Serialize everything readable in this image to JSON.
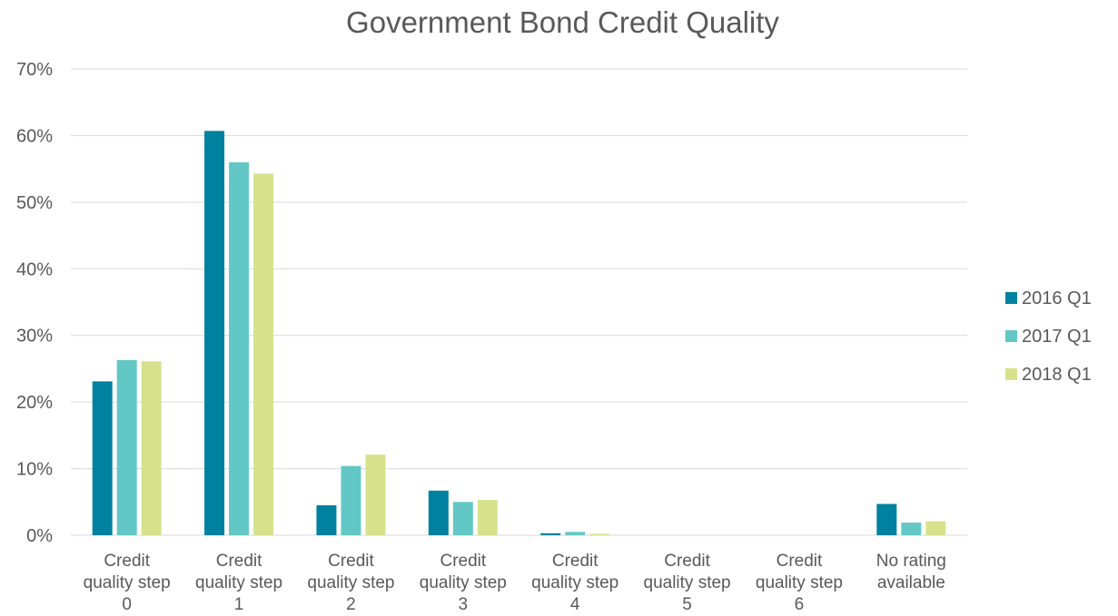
{
  "chart_data": {
    "type": "bar",
    "title": "Government Bond Credit Quality",
    "xlabel": "",
    "ylabel": "",
    "categories": [
      [
        "Credit",
        "quality step",
        "0"
      ],
      [
        "Credit",
        "quality step",
        "1"
      ],
      [
        "Credit",
        "quality step",
        "2"
      ],
      [
        "Credit",
        "quality step",
        "3"
      ],
      [
        "Credit",
        "quality step",
        "4"
      ],
      [
        "Credit",
        "quality step",
        "5"
      ],
      [
        "Credit",
        "quality step",
        "6"
      ],
      [
        "No rating",
        "available"
      ]
    ],
    "series": [
      {
        "name": "2016 Q1",
        "color": "#00819F",
        "values": [
          23.1,
          60.7,
          4.5,
          6.7,
          0.3,
          0.0,
          0.0,
          4.7
        ]
      },
      {
        "name": "2017 Q1",
        "color": "#63C8C5",
        "values": [
          26.3,
          56.0,
          10.4,
          5.0,
          0.5,
          0.0,
          0.0,
          1.9
        ]
      },
      {
        "name": "2018 Q1",
        "color": "#D6E28B",
        "values": [
          26.1,
          54.3,
          12.1,
          5.3,
          0.2,
          0.0,
          0.0,
          2.1
        ]
      }
    ],
    "ylim": [
      0,
      70
    ],
    "yticks": [
      0,
      10,
      20,
      30,
      40,
      50,
      60,
      70
    ],
    "ytick_labels": [
      "0%",
      "10%",
      "20%",
      "30%",
      "40%",
      "50%",
      "60%",
      "70%"
    ],
    "grid": true,
    "legend_position": "right"
  }
}
